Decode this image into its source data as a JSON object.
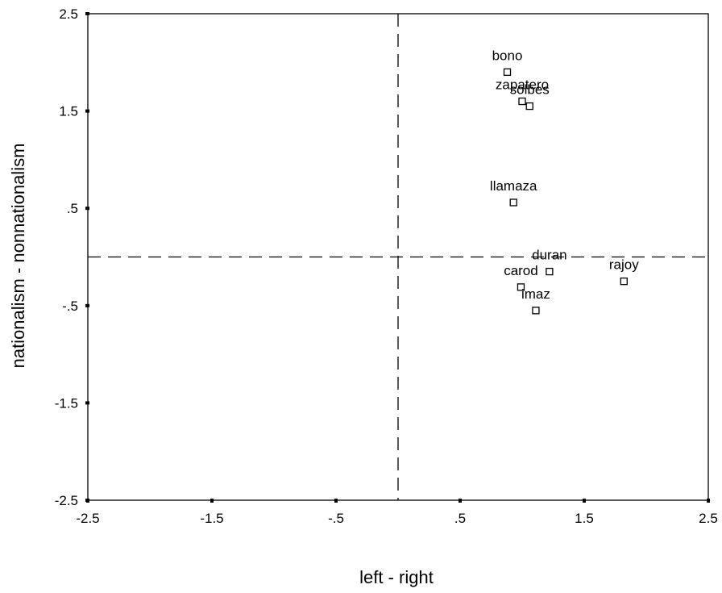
{
  "chart_data": {
    "type": "scatter",
    "title": "",
    "xlabel": "left - right",
    "ylabel": "nationalism - nonnationalism",
    "xlim": [
      -2.5,
      2.5
    ],
    "ylim": [
      -2.5,
      2.5
    ],
    "xticks": [
      -2.5,
      -1.5,
      -0.5,
      0.5,
      1.5,
      2.5
    ],
    "xtick_labels": [
      "-2.5",
      "-1.5",
      "-.5",
      ".5",
      "1.5",
      "2.5"
    ],
    "yticks": [
      2.5,
      1.5,
      0.5,
      -0.5,
      -1.5,
      -2.5
    ],
    "ytick_labels": [
      "2.5",
      "1.5",
      ".5",
      "-.5",
      "-1.5",
      "-2.5"
    ],
    "reference_lines": {
      "x": 0,
      "y": 0,
      "style": "dashed"
    },
    "grid": false,
    "marker": "hollow-square",
    "points": [
      {
        "label": "bono",
        "x": 0.88,
        "y": 1.9
      },
      {
        "label": "zapatero",
        "x": 1.0,
        "y": 1.6
      },
      {
        "label": "solbes",
        "x": 1.06,
        "y": 1.55
      },
      {
        "label": "llamaza",
        "x": 0.93,
        "y": 0.56
      },
      {
        "label": "duran",
        "x": 1.22,
        "y": -0.15
      },
      {
        "label": "carod",
        "x": 0.99,
        "y": -0.31
      },
      {
        "label": "imaz",
        "x": 1.11,
        "y": -0.55
      },
      {
        "label": "rajoy",
        "x": 1.82,
        "y": -0.25
      }
    ]
  }
}
